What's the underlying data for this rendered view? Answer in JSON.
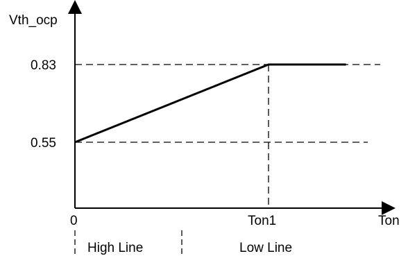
{
  "chart_data": {
    "type": "line",
    "ylabel": "Vth_ocp",
    "xlabel": "Ton",
    "x_ticks": [
      {
        "value": 0,
        "label": "0"
      },
      {
        "value": 1,
        "label": "Ton1"
      }
    ],
    "y_ticks": [
      {
        "value": 0.55,
        "label": "0.55"
      },
      {
        "value": 0.83,
        "label": "0.83"
      }
    ],
    "series": [
      {
        "x": [
          0,
          1,
          1.4
        ],
        "y": [
          0.55,
          0.83,
          0.83
        ]
      }
    ],
    "regions": [
      {
        "label": "High Line",
        "from": 0,
        "to": 0.5
      },
      {
        "label": "Low Line",
        "from": 0.5,
        "to": 1.4
      }
    ],
    "grid": "dashed reference lines at y ticks and Ton1",
    "line_color": "#000000"
  }
}
